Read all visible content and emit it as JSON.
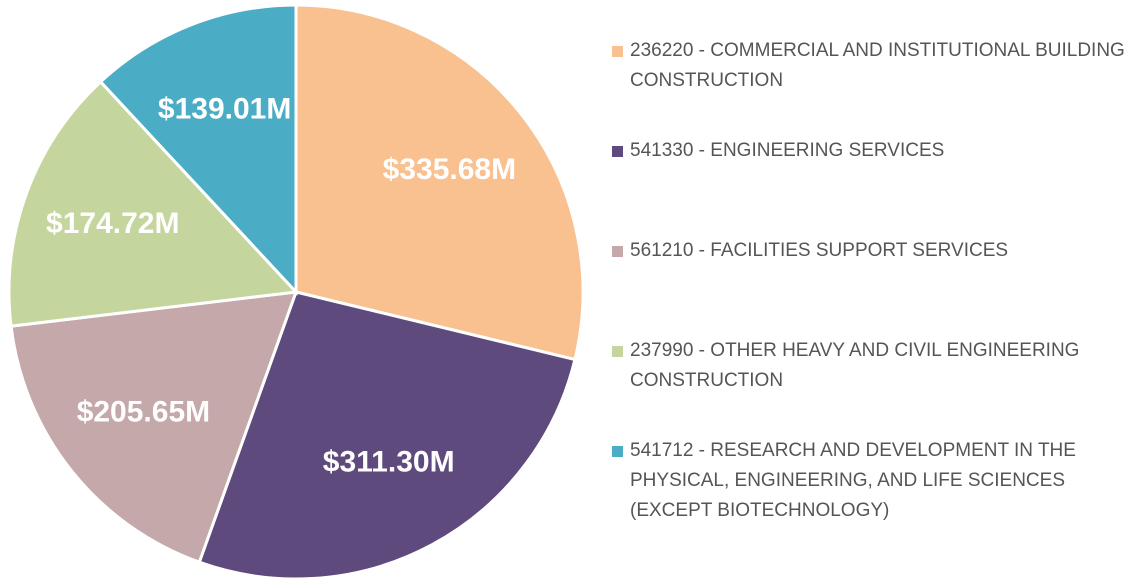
{
  "chart_data": {
    "type": "pie",
    "categories": [
      "236220 - COMMERCIAL AND INSTITUTIONAL BUILDING CONSTRUCTION",
      "541330 - ENGINEERING SERVICES",
      "561210 - FACILITIES SUPPORT SERVICES",
      "237990 - OTHER HEAVY AND CIVIL ENGINEERING CONSTRUCTION",
      "541712 - RESEARCH AND DEVELOPMENT IN THE PHYSICAL, ENGINEERING, AND LIFE SCIENCES (EXCEPT BIOTECHNOLOGY)"
    ],
    "values": [
      335.68,
      311.3,
      205.65,
      174.72,
      139.01
    ],
    "value_labels": [
      "$335.68M",
      "$311.30M",
      "$205.65M",
      "$174.72M",
      "$139.01M"
    ],
    "colors": [
      "#f9c090",
      "#5e4a7d",
      "#c4a8aa",
      "#c5d59e",
      "#4bacc6"
    ],
    "legend": "right"
  }
}
